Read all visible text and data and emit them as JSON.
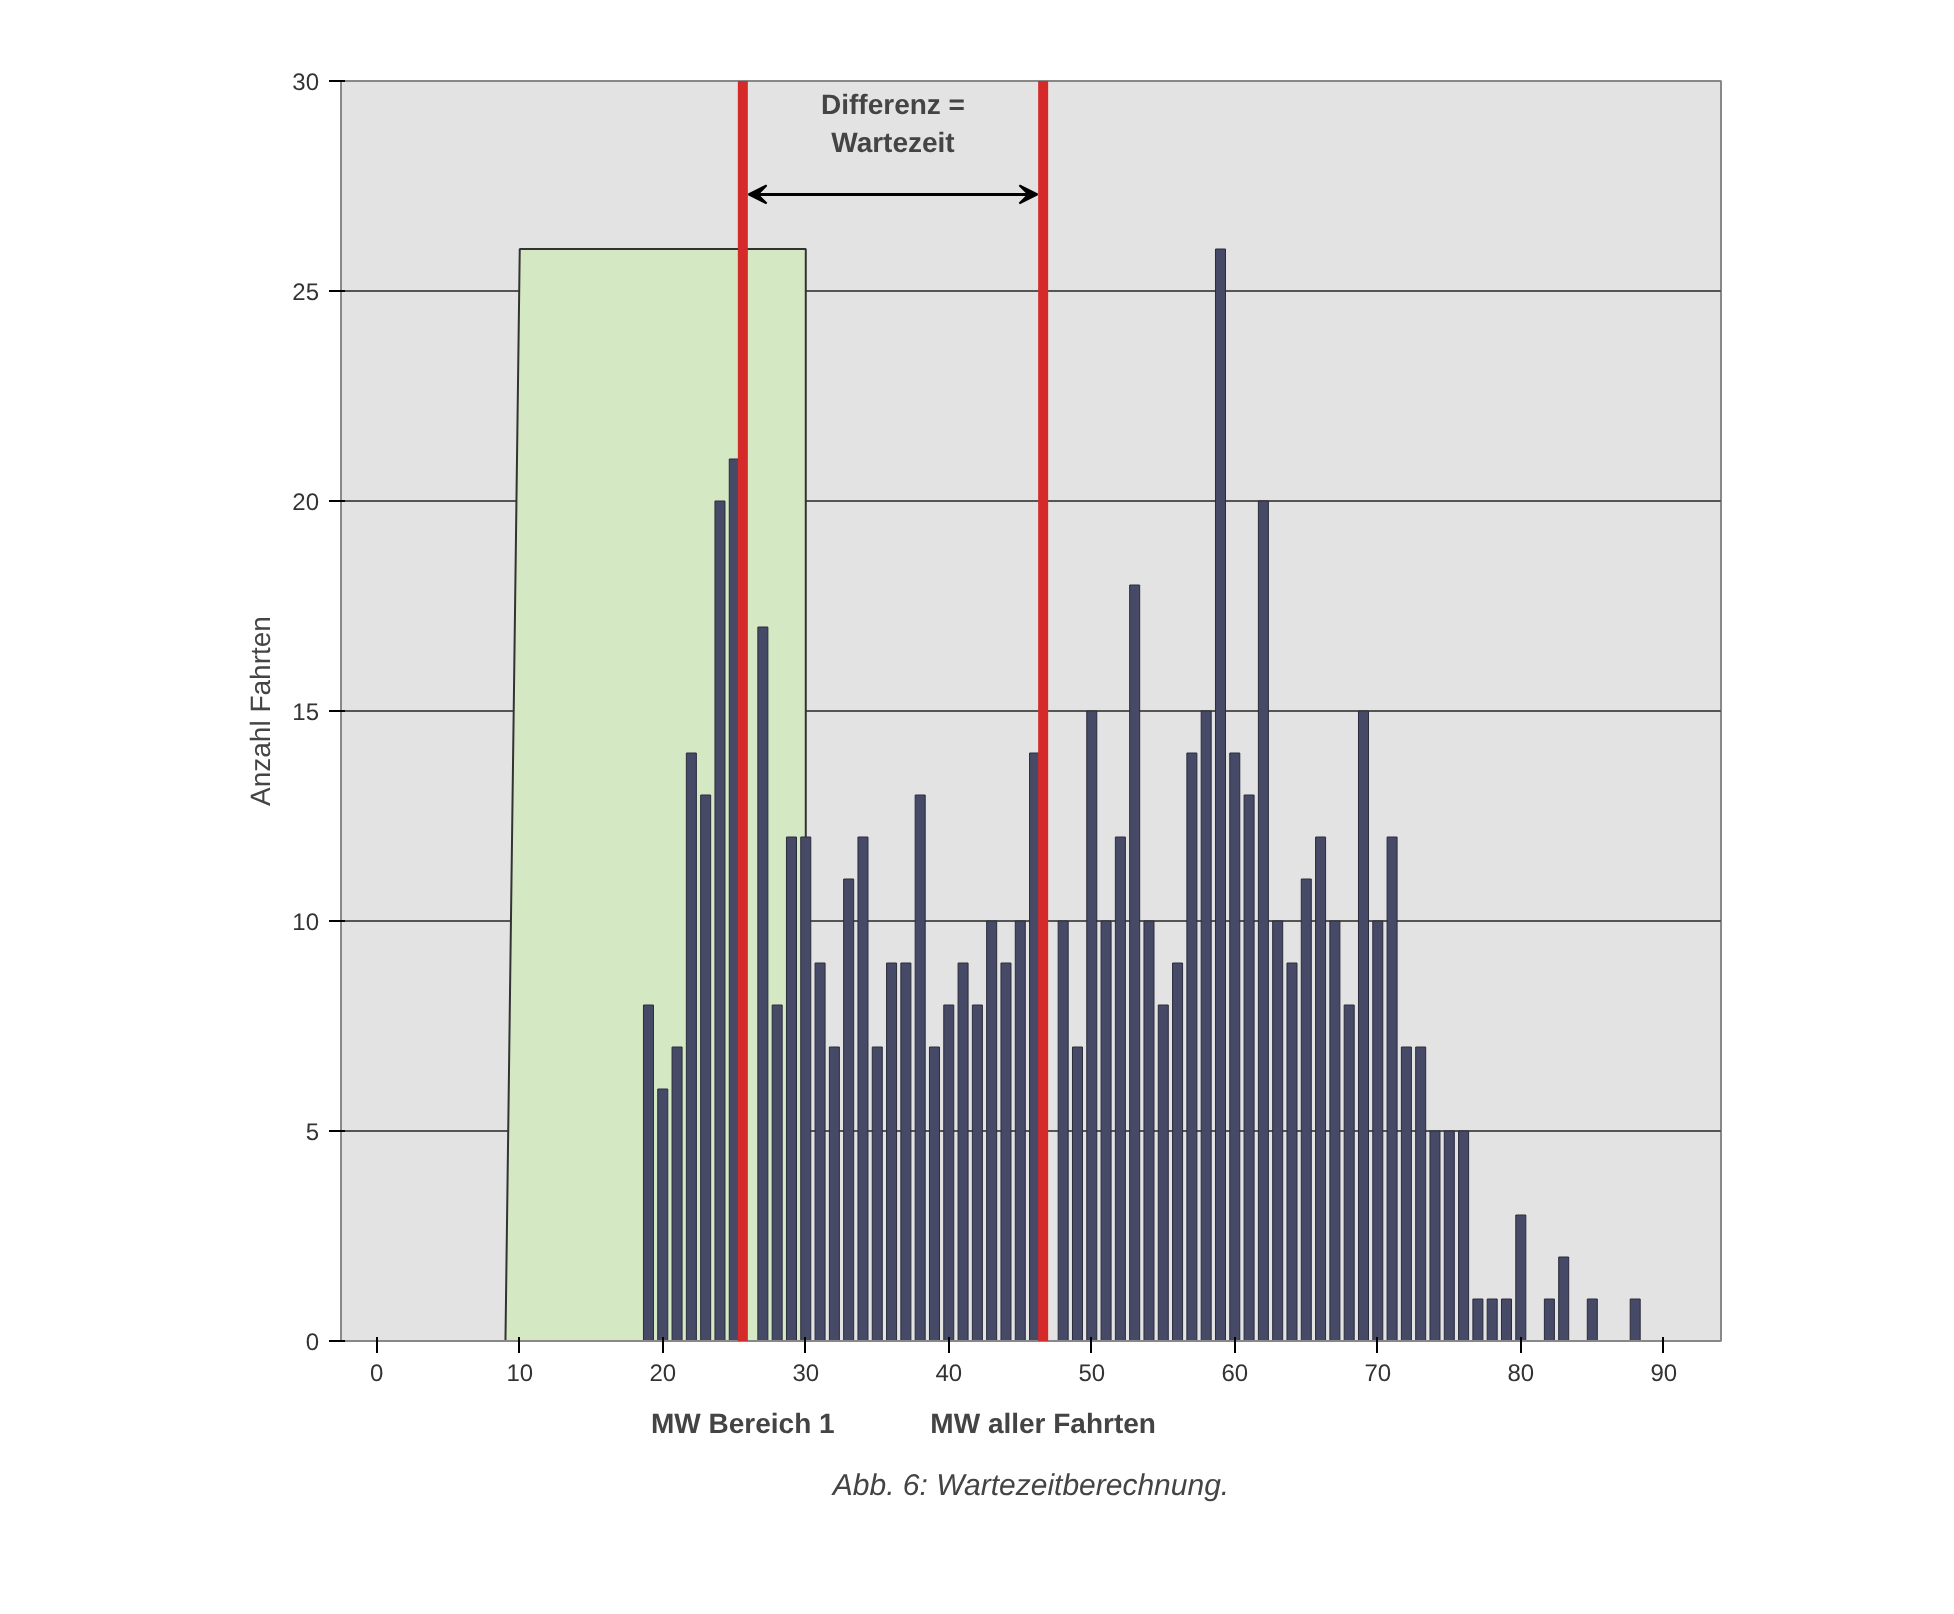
{
  "chart_data": {
    "type": "bar",
    "ylabel": "Anzahl Fahrten",
    "x": [
      19,
      20,
      21,
      22,
      23,
      24,
      25,
      27,
      28,
      29,
      30,
      31,
      32,
      33,
      34,
      35,
      36,
      37,
      38,
      39,
      40,
      41,
      42,
      43,
      44,
      45,
      46,
      48,
      49,
      50,
      51,
      52,
      53,
      54,
      55,
      56,
      57,
      58,
      59,
      60,
      61,
      62,
      63,
      64,
      65,
      66,
      67,
      68,
      69,
      70,
      71,
      72,
      73,
      74,
      75,
      76,
      77,
      78,
      79,
      80,
      82,
      83,
      85,
      88
    ],
    "series": [
      {
        "type": "area",
        "color": "#d5e8c4",
        "x": [
          9,
          10,
          30,
          30
        ],
        "values": [
          0,
          26,
          26,
          0
        ]
      },
      {
        "color": "#464a66",
        "values": [
          8,
          6,
          7,
          14,
          13,
          20,
          21,
          17,
          8,
          12,
          12,
          9,
          7,
          11,
          12,
          7,
          9,
          9,
          13,
          7,
          8,
          9,
          8,
          10,
          9,
          10,
          14,
          10,
          7,
          15,
          10,
          12,
          18,
          10,
          8,
          9,
          14,
          15,
          26,
          14,
          13,
          20,
          10,
          9,
          11,
          12,
          10,
          8,
          15,
          10,
          12,
          7,
          7,
          5,
          5,
          5,
          1,
          1,
          1,
          3,
          1,
          2,
          1,
          1
        ]
      }
    ],
    "xlim": [
      -2.5,
      94
    ],
    "ylim": [
      0,
      30
    ],
    "xticks": [
      0,
      10,
      20,
      30,
      40,
      50,
      60,
      70,
      80,
      90
    ],
    "yticks": [
      0,
      5,
      10,
      15,
      20,
      25,
      30
    ],
    "grid": "y",
    "ref_lines": [
      {
        "axis": "x",
        "value": 25.6,
        "label": "MW Bereich 1",
        "color": "#d42a2a"
      },
      {
        "axis": "x",
        "value": 46.6,
        "label": "MW aller Fahrten",
        "color": "#d42a2a"
      }
    ],
    "annotations": [
      "Differenz =\nWartezeit",
      "Abb. 6: Wartezeitberechnung."
    ]
  }
}
